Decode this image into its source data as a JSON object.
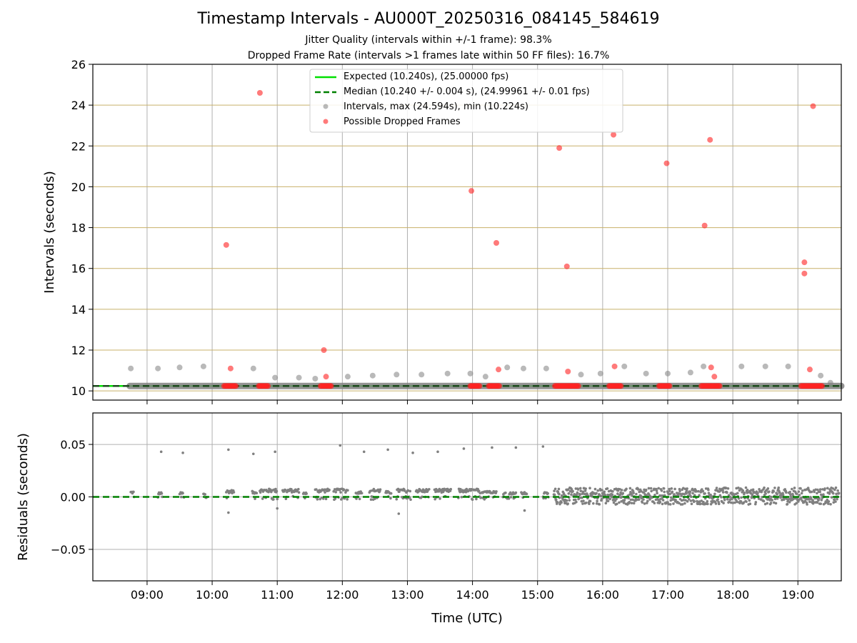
{
  "page": {
    "title": "Timestamp Intervals - AU000T_20250316_084145_584619",
    "subtitle_line1": "Jitter Quality (intervals within +/-1 frame): 98.3%",
    "subtitle_line2": "Dropped Frame Rate (intervals >1 frames late within 50 FF files): 16.7%"
  },
  "colors": {
    "expected": "#00e000",
    "median": "#008000",
    "intervals": "#808080",
    "dropped": "#ff2222",
    "grid": "#b0b0b0",
    "hgrid": "#c8b06a"
  },
  "chart_data": [
    {
      "type": "scatter",
      "xlabel": "",
      "ylabel": "Intervals (seconds)",
      "xlim": [
        "08:10",
        "19:40"
      ],
      "ylim": [
        9.55,
        26
      ],
      "yticks": [
        10,
        12,
        14,
        16,
        18,
        20,
        22,
        24,
        26
      ],
      "xticks": [
        "09:00",
        "10:00",
        "11:00",
        "12:00",
        "13:00",
        "14:00",
        "15:00",
        "16:00",
        "17:00",
        "18:00",
        "19:00"
      ],
      "grid": true,
      "legend_position": "top-center",
      "legend": [
        "Expected (10.240s), (25.00000 fps)",
        "Median (10.240 +/- 0.004 s), (24.99961 +/- 0.01 fps)",
        "Intervals, max (24.594s), min (10.224s)",
        "Possible Dropped Frames"
      ],
      "expected_value": 10.24,
      "median_value": 10.24,
      "series": [
        {
          "name": "Intervals, max (24.594s), min (10.224s)",
          "x": [
            "08:45",
            "09:10",
            "09:30",
            "09:52",
            "10:38",
            "10:58",
            "11:20",
            "11:35",
            "12:05",
            "12:28",
            "12:50",
            "13:13",
            "13:37",
            "13:58",
            "14:12",
            "14:32",
            "14:47",
            "15:08",
            "15:40",
            "15:58",
            "16:20",
            "16:40",
            "17:00",
            "17:21",
            "17:33",
            "18:08",
            "18:30",
            "18:51",
            "19:21",
            "19:30"
          ],
          "y": [
            11.1,
            11.1,
            11.15,
            11.2,
            11.1,
            10.65,
            10.65,
            10.6,
            10.7,
            10.75,
            10.8,
            10.8,
            10.85,
            10.85,
            10.7,
            11.15,
            11.1,
            11.1,
            10.8,
            10.85,
            11.2,
            10.85,
            10.85,
            10.9,
            11.2,
            11.2,
            11.2,
            11.2,
            10.75,
            10.4
          ]
        },
        {
          "name": "Possible Dropped Frames",
          "x": [
            "10:13",
            "10:17",
            "10:44",
            "11:43",
            "11:45",
            "13:59",
            "14:22",
            "14:24",
            "15:20",
            "15:27",
            "15:28",
            "16:10",
            "16:11",
            "16:59",
            "17:34",
            "17:39",
            "17:40",
            "17:43",
            "19:06",
            "19:06",
            "19:11",
            "19:14"
          ],
          "y": [
            17.15,
            11.1,
            24.6,
            12.0,
            10.7,
            19.8,
            17.25,
            11.05,
            21.9,
            16.1,
            10.95,
            22.55,
            11.2,
            21.15,
            18.1,
            22.3,
            11.15,
            10.7,
            16.3,
            15.75,
            11.05,
            23.95
          ]
        }
      ],
      "dropped_bands": [
        [
          "10:11",
          "10:23"
        ],
        [
          "10:43",
          "10:52"
        ],
        [
          "11:40",
          "11:50"
        ],
        [
          "13:58",
          "14:07"
        ],
        [
          "14:15",
          "14:25"
        ],
        [
          "15:16",
          "15:38"
        ],
        [
          "16:06",
          "16:18"
        ],
        [
          "16:52",
          "17:02"
        ],
        [
          "17:31",
          "17:48"
        ],
        [
          "19:03",
          "19:23"
        ]
      ]
    },
    {
      "type": "scatter",
      "xlabel": "Time (UTC)",
      "ylabel": "Residuals (seconds)",
      "xlim": [
        "08:10",
        "19:40"
      ],
      "ylim": [
        -0.08,
        0.08
      ],
      "yticks": [
        -0.05,
        0.0,
        0.05
      ],
      "ytick_labels": [
        "−0.05",
        "0.00",
        "0.05"
      ],
      "xticks": [
        "09:00",
        "10:00",
        "11:00",
        "12:00",
        "13:00",
        "14:00",
        "15:00",
        "16:00",
        "17:00",
        "18:00",
        "19:00"
      ],
      "grid": true,
      "series": [
        {
          "name": "Residuals",
          "x": [
            "09:13",
            "09:33",
            "10:15",
            "10:38",
            "10:58",
            "11:58",
            "12:20",
            "12:42",
            "13:05",
            "13:28",
            "13:52",
            "14:18",
            "14:40",
            "15:05",
            "10:15",
            "11:00",
            "12:52",
            "14:48"
          ],
          "y": [
            0.043,
            0.042,
            0.045,
            0.041,
            0.043,
            0.049,
            0.043,
            0.045,
            0.042,
            0.043,
            0.046,
            0.047,
            0.047,
            0.048,
            -0.015,
            -0.011,
            -0.016,
            -0.013
          ]
        }
      ]
    }
  ]
}
